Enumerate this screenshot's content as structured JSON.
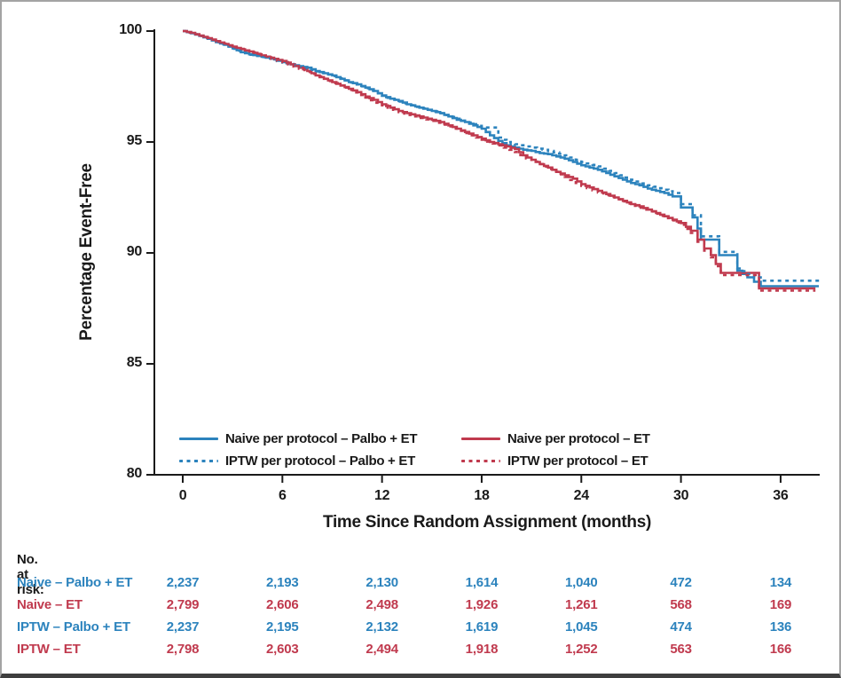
{
  "figure": {
    "y_axis": {
      "title": "Percentage Event-Free",
      "ticks": [
        "100",
        "95",
        "90",
        "85",
        "80"
      ],
      "tick_values": [
        100,
        95,
        90,
        85,
        80
      ]
    },
    "x_axis": {
      "title": "Time Since Random Assignment (months)",
      "ticks": [
        "0",
        "6",
        "12",
        "18",
        "24",
        "30",
        "36"
      ],
      "tick_values": [
        0,
        6,
        12,
        18,
        24,
        30,
        36
      ]
    },
    "legend": [
      {
        "label": "Naive per protocol – Palbo + ET",
        "color": "#2c83bd",
        "style": "solid"
      },
      {
        "label": "IPTW per protocol – Palbo + ET",
        "color": "#2c83bd",
        "style": "dotted"
      },
      {
        "label": "Naive per protocol – ET",
        "color": "#c03a4e",
        "style": "solid"
      },
      {
        "label": "IPTW per protocol – ET",
        "color": "#c03a4e",
        "style": "dotted"
      }
    ],
    "colors": {
      "blue": "#2c83bd",
      "red": "#c03a4e",
      "axis": "#1a1a1a"
    }
  },
  "chart_data": {
    "type": "line",
    "subtype": "kaplan-meier-step",
    "title": "",
    "xlabel": "Time Since Random Assignment (months)",
    "ylabel": "Percentage Event-Free",
    "xlim": [
      0,
      38.5
    ],
    "ylim": [
      80,
      100
    ],
    "grid": false,
    "legend_position": "inside-bottom",
    "series": [
      {
        "name": "Naive per protocol – Palbo + ET",
        "color": "#2c83bd",
        "dash": "solid",
        "points": [
          [
            0,
            100
          ],
          [
            0.5,
            99.9
          ],
          [
            1,
            99.78
          ],
          [
            1.5,
            99.65
          ],
          [
            2,
            99.5
          ],
          [
            2.5,
            99.38
          ],
          [
            3,
            99.22
          ],
          [
            3.5,
            99.05
          ],
          [
            4,
            98.95
          ],
          [
            4.5,
            98.88
          ],
          [
            5,
            98.8
          ],
          [
            5.5,
            98.72
          ],
          [
            6,
            98.6
          ],
          [
            6.5,
            98.5
          ],
          [
            7,
            98.42
          ],
          [
            7.5,
            98.35
          ],
          [
            8,
            98.2
          ],
          [
            8.5,
            98.1
          ],
          [
            9,
            98.0
          ],
          [
            9.5,
            97.85
          ],
          [
            10,
            97.7
          ],
          [
            10.5,
            97.6
          ],
          [
            11,
            97.45
          ],
          [
            11.5,
            97.3
          ],
          [
            12,
            97.1
          ],
          [
            12.5,
            96.95
          ],
          [
            13,
            96.85
          ],
          [
            13.5,
            96.7
          ],
          [
            14,
            96.6
          ],
          [
            14.5,
            96.5
          ],
          [
            15,
            96.4
          ],
          [
            15.5,
            96.3
          ],
          [
            16,
            96.15
          ],
          [
            16.5,
            96.0
          ],
          [
            17,
            95.9
          ],
          [
            17.5,
            95.75
          ],
          [
            18,
            95.6
          ],
          [
            18.5,
            95.3
          ],
          [
            19,
            95.05
          ],
          [
            19.5,
            94.85
          ],
          [
            20,
            94.75
          ],
          [
            20.5,
            94.65
          ],
          [
            21,
            94.6
          ],
          [
            21.5,
            94.5
          ],
          [
            22,
            94.45
          ],
          [
            22.5,
            94.35
          ],
          [
            23,
            94.25
          ],
          [
            23.5,
            94.1
          ],
          [
            24,
            93.95
          ],
          [
            24.5,
            93.85
          ],
          [
            25,
            93.75
          ],
          [
            25.5,
            93.6
          ],
          [
            26,
            93.45
          ],
          [
            26.5,
            93.3
          ],
          [
            27,
            93.15
          ],
          [
            27.5,
            93.05
          ],
          [
            28,
            92.9
          ],
          [
            28.5,
            92.8
          ],
          [
            29,
            92.7
          ],
          [
            29.5,
            92.55
          ],
          [
            30,
            92.05
          ],
          [
            30.7,
            91.6
          ],
          [
            31,
            91.1
          ],
          [
            31.2,
            90.6
          ],
          [
            32.3,
            89.9
          ],
          [
            33.4,
            89.2
          ],
          [
            34,
            88.9
          ],
          [
            34.8,
            88.5
          ],
          [
            38.3,
            88.5
          ]
        ]
      },
      {
        "name": "Naive per protocol – ET",
        "color": "#c03a4e",
        "dash": "solid",
        "points": [
          [
            0,
            100
          ],
          [
            0.5,
            99.92
          ],
          [
            1,
            99.8
          ],
          [
            1.5,
            99.68
          ],
          [
            2,
            99.55
          ],
          [
            2.5,
            99.42
          ],
          [
            3,
            99.3
          ],
          [
            3.5,
            99.18
          ],
          [
            4,
            99.08
          ],
          [
            4.5,
            98.95
          ],
          [
            5,
            98.85
          ],
          [
            5.5,
            98.75
          ],
          [
            6,
            98.65
          ],
          [
            6.5,
            98.5
          ],
          [
            7,
            98.35
          ],
          [
            7.5,
            98.2
          ],
          [
            8,
            98.0
          ],
          [
            8.5,
            97.85
          ],
          [
            9,
            97.7
          ],
          [
            9.5,
            97.55
          ],
          [
            10,
            97.4
          ],
          [
            10.5,
            97.25
          ],
          [
            11,
            97.05
          ],
          [
            11.5,
            96.9
          ],
          [
            12,
            96.7
          ],
          [
            12.5,
            96.55
          ],
          [
            13,
            96.4
          ],
          [
            13.5,
            96.3
          ],
          [
            14,
            96.2
          ],
          [
            14.5,
            96.1
          ],
          [
            15,
            96.0
          ],
          [
            15.5,
            95.9
          ],
          [
            16,
            95.75
          ],
          [
            16.5,
            95.6
          ],
          [
            17,
            95.45
          ],
          [
            17.5,
            95.3
          ],
          [
            18,
            95.15
          ],
          [
            18.5,
            95.0
          ],
          [
            19,
            94.9
          ],
          [
            19.5,
            94.8
          ],
          [
            20,
            94.68
          ],
          [
            20.5,
            94.4
          ],
          [
            21,
            94.2
          ],
          [
            21.5,
            94.0
          ],
          [
            22,
            93.85
          ],
          [
            22.5,
            93.65
          ],
          [
            23,
            93.5
          ],
          [
            23.5,
            93.35
          ],
          [
            24,
            93.1
          ],
          [
            24.5,
            92.95
          ],
          [
            25,
            92.8
          ],
          [
            25.5,
            92.65
          ],
          [
            26,
            92.5
          ],
          [
            26.5,
            92.35
          ],
          [
            27,
            92.2
          ],
          [
            27.5,
            92.1
          ],
          [
            28,
            91.95
          ],
          [
            28.5,
            91.8
          ],
          [
            29,
            91.65
          ],
          [
            29.5,
            91.5
          ],
          [
            30,
            91.35
          ],
          [
            30.6,
            91.0
          ],
          [
            31,
            90.6
          ],
          [
            31.4,
            90.2
          ],
          [
            31.8,
            89.9
          ],
          [
            32.1,
            89.5
          ],
          [
            32.4,
            89.1
          ],
          [
            34.7,
            88.4
          ],
          [
            38.1,
            88.4
          ]
        ]
      },
      {
        "name": "IPTW per protocol – Palbo + ET",
        "color": "#2c83bd",
        "dash": "dotted",
        "points": [
          [
            0,
            100
          ],
          [
            1,
            99.78
          ],
          [
            2,
            99.5
          ],
          [
            3,
            99.2
          ],
          [
            4,
            98.93
          ],
          [
            5,
            98.78
          ],
          [
            6,
            98.58
          ],
          [
            7,
            98.4
          ],
          [
            8,
            98.18
          ],
          [
            9,
            97.97
          ],
          [
            10,
            97.68
          ],
          [
            11,
            97.42
          ],
          [
            12,
            97.08
          ],
          [
            13,
            96.82
          ],
          [
            14,
            96.58
          ],
          [
            15,
            96.38
          ],
          [
            16,
            96.13
          ],
          [
            17,
            95.88
          ],
          [
            18,
            95.65
          ],
          [
            19,
            95.2
          ],
          [
            19.5,
            95.0
          ],
          [
            20,
            94.9
          ],
          [
            21,
            94.75
          ],
          [
            22,
            94.6
          ],
          [
            23,
            94.4
          ],
          [
            24,
            94.1
          ],
          [
            25,
            93.9
          ],
          [
            26,
            93.6
          ],
          [
            27,
            93.3
          ],
          [
            28,
            93.05
          ],
          [
            29,
            92.85
          ],
          [
            29.5,
            92.7
          ],
          [
            30,
            92.2
          ],
          [
            30.7,
            91.7
          ],
          [
            31.2,
            90.75
          ],
          [
            32.3,
            90.05
          ],
          [
            33.4,
            89.3
          ],
          [
            34,
            89.05
          ],
          [
            34.8,
            88.75
          ],
          [
            38.4,
            88.75
          ]
        ]
      },
      {
        "name": "IPTW per protocol – ET",
        "color": "#c03a4e",
        "dash": "dotted",
        "points": [
          [
            0,
            100
          ],
          [
            1,
            99.78
          ],
          [
            2,
            99.52
          ],
          [
            3,
            99.27
          ],
          [
            4,
            99.05
          ],
          [
            5,
            98.82
          ],
          [
            6,
            98.6
          ],
          [
            7,
            98.3
          ],
          [
            8,
            97.95
          ],
          [
            9,
            97.65
          ],
          [
            10,
            97.35
          ],
          [
            11,
            97.0
          ],
          [
            12,
            96.65
          ],
          [
            13,
            96.35
          ],
          [
            14,
            96.15
          ],
          [
            15,
            95.95
          ],
          [
            16,
            95.7
          ],
          [
            17,
            95.4
          ],
          [
            18,
            95.1
          ],
          [
            19,
            94.85
          ],
          [
            20,
            94.55
          ],
          [
            21,
            94.12
          ],
          [
            22,
            93.78
          ],
          [
            23,
            93.42
          ],
          [
            24,
            93.02
          ],
          [
            25,
            92.72
          ],
          [
            26,
            92.42
          ],
          [
            27,
            92.12
          ],
          [
            28,
            91.87
          ],
          [
            29,
            91.57
          ],
          [
            30,
            91.27
          ],
          [
            30.6,
            90.9
          ],
          [
            31,
            90.5
          ],
          [
            31.4,
            90.1
          ],
          [
            31.8,
            89.8
          ],
          [
            32.1,
            89.4
          ],
          [
            32.4,
            89.0
          ],
          [
            34.7,
            88.3
          ],
          [
            38.1,
            88.3
          ]
        ]
      }
    ]
  },
  "risk_table": {
    "heading": "No. at risk:",
    "time_points": [
      0,
      6,
      12,
      18,
      24,
      30,
      36
    ],
    "rows": [
      {
        "label": "Naive – Palbo + ET",
        "color": "#2c83bd",
        "values": [
          "2,237",
          "2,193",
          "2,130",
          "1,614",
          "1,040",
          "472",
          "134"
        ]
      },
      {
        "label": "Naive – ET",
        "color": "#c03a4e",
        "values": [
          "2,799",
          "2,606",
          "2,498",
          "1,926",
          "1,261",
          "568",
          "169"
        ]
      },
      {
        "label": "IPTW – Palbo + ET",
        "color": "#2c83bd",
        "values": [
          "2,237",
          "2,195",
          "2,132",
          "1,619",
          "1,045",
          "474",
          "136"
        ]
      },
      {
        "label": "IPTW – ET",
        "color": "#c03a4e",
        "values": [
          "2,798",
          "2,603",
          "2,494",
          "1,918",
          "1,252",
          "563",
          "166"
        ]
      }
    ]
  }
}
